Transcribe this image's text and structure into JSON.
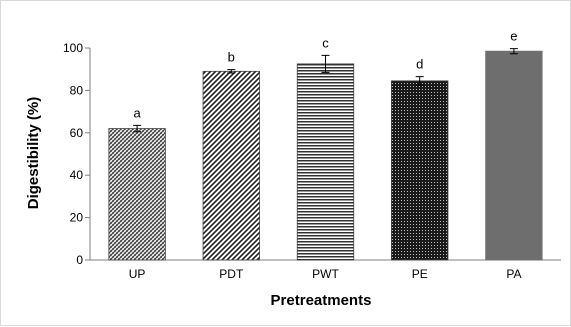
{
  "chart_data": {
    "type": "bar",
    "categories": [
      "UP",
      "PDT",
      "PWT",
      "PE",
      "PA"
    ],
    "values": [
      62,
      89,
      92.5,
      84.5,
      98.5
    ],
    "errors": [
      1.5,
      0.8,
      4,
      2,
      1.2
    ],
    "significance_labels": [
      "a",
      "b",
      "c",
      "d",
      "e"
    ],
    "patterns": [
      "diag-cross-dense",
      "diag-wide",
      "horiz-lines",
      "dense-dots",
      "solid-gray"
    ],
    "xlabel": "Pretreatments",
    "ylabel": "Digestibility (%)",
    "ylim": [
      0,
      100
    ],
    "yticks": [
      0,
      20,
      40,
      60,
      80,
      100
    ],
    "grid": false,
    "legend": "none",
    "colors": {
      "bar_dark": "#404040",
      "bar_gray": "#6e6e6e",
      "axis": "#7f7f7f"
    }
  }
}
